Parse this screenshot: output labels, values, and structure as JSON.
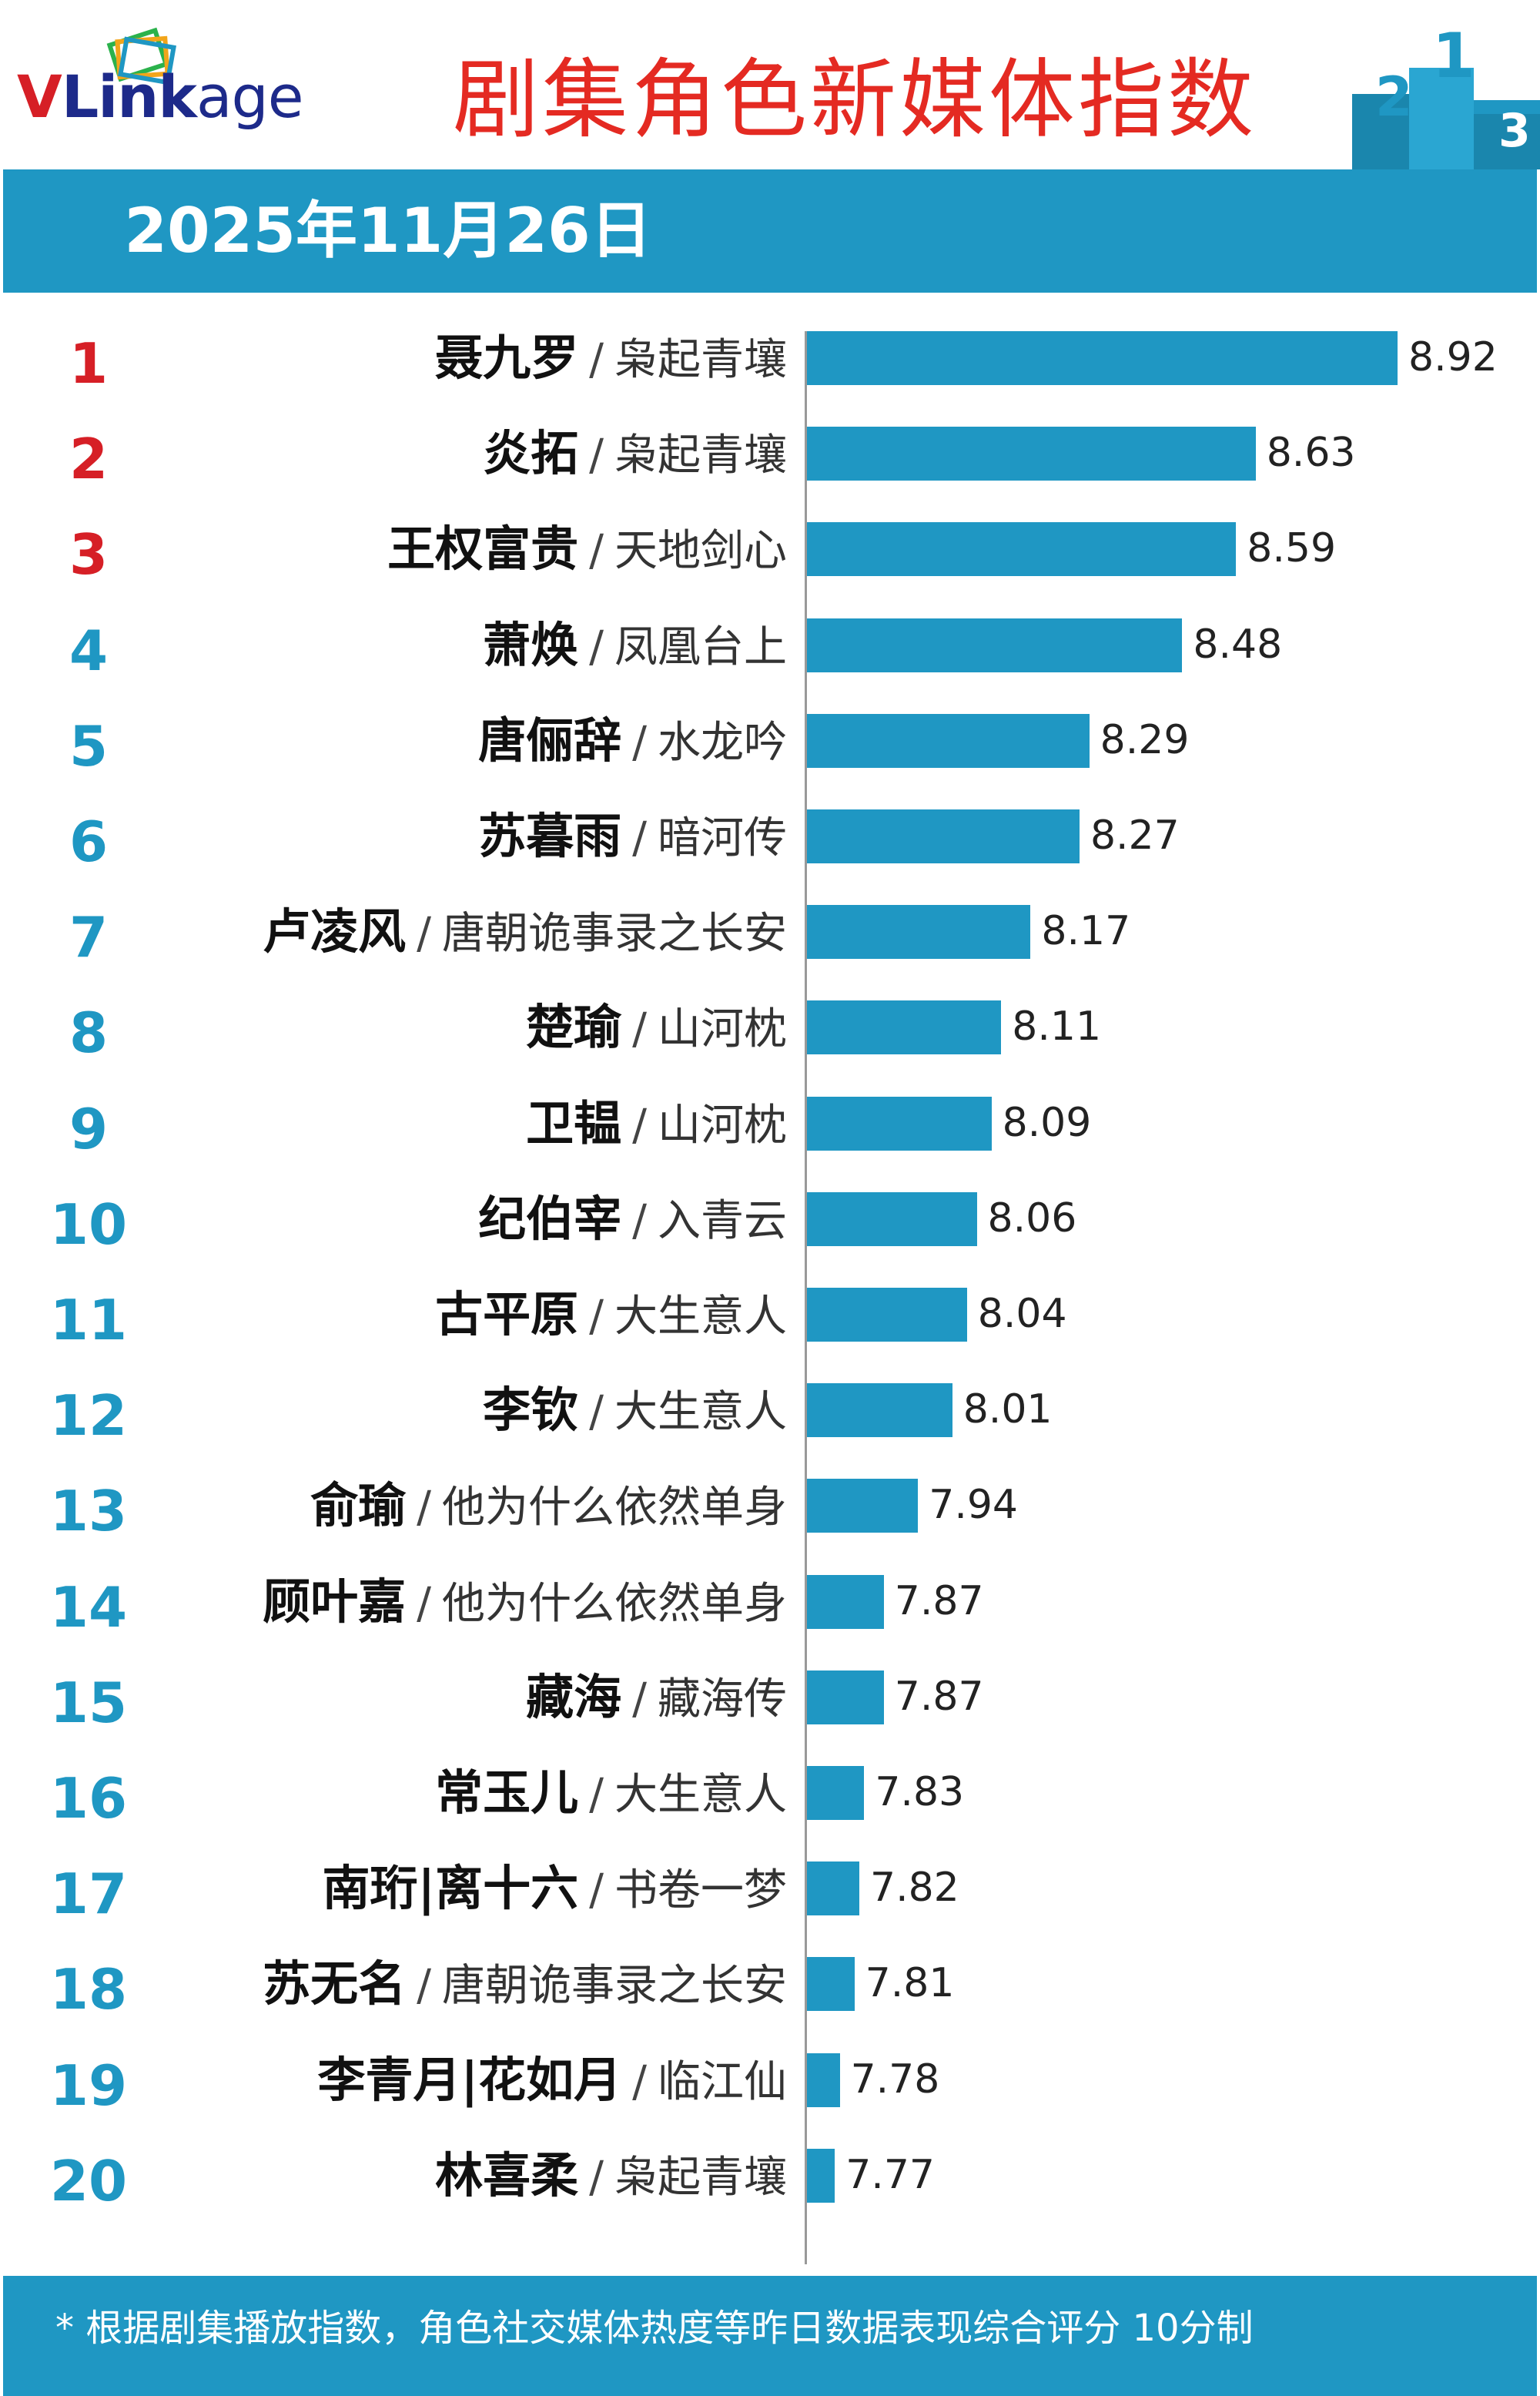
{
  "brand": {
    "logo_v": "V",
    "logo_link": "Link",
    "logo_age": "age"
  },
  "header": {
    "title": "剧集角色新媒体指数",
    "date": "2025年11月26日"
  },
  "colors": {
    "bar": "#1f97c3",
    "rank_top": "#d61f26",
    "rank_other": "#1f97c3",
    "title": "#e42a22"
  },
  "chart_data": {
    "type": "bar",
    "orientation": "horizontal",
    "title": "剧集角色新媒体指数",
    "subtitle": "2025年11月26日",
    "xlim": [
      7.7,
      9.0
    ],
    "items": [
      {
        "rank": "1",
        "character": "聂九罗",
        "drama": "枭起青壤",
        "value": 8.92,
        "value_label": "8.92"
      },
      {
        "rank": "2",
        "character": "炎拓",
        "drama": "枭起青壤",
        "value": 8.63,
        "value_label": "8.63"
      },
      {
        "rank": "3",
        "character": "王权富贵",
        "drama": "天地剑心",
        "value": 8.59,
        "value_label": "8.59"
      },
      {
        "rank": "4",
        "character": "萧焕",
        "drama": "凤凰台上",
        "value": 8.48,
        "value_label": "8.48"
      },
      {
        "rank": "5",
        "character": "唐俪辞",
        "drama": "水龙吟",
        "value": 8.29,
        "value_label": "8.29"
      },
      {
        "rank": "6",
        "character": "苏暮雨",
        "drama": "暗河传",
        "value": 8.27,
        "value_label": "8.27"
      },
      {
        "rank": "7",
        "character": "卢凌风",
        "drama": "唐朝诡事录之长安",
        "value": 8.17,
        "value_label": "8.17"
      },
      {
        "rank": "8",
        "character": "楚瑜",
        "drama": "山河枕",
        "value": 8.11,
        "value_label": "8.11"
      },
      {
        "rank": "9",
        "character": "卫韫",
        "drama": "山河枕",
        "value": 8.09,
        "value_label": "8.09"
      },
      {
        "rank": "10",
        "character": "纪伯宰",
        "drama": "入青云",
        "value": 8.06,
        "value_label": "8.06"
      },
      {
        "rank": "11",
        "character": "古平原",
        "drama": "大生意人",
        "value": 8.04,
        "value_label": "8.04"
      },
      {
        "rank": "12",
        "character": "李钦",
        "drama": "大生意人",
        "value": 8.01,
        "value_label": "8.01"
      },
      {
        "rank": "13",
        "character": "俞瑜",
        "drama": "他为什么依然单身",
        "value": 7.94,
        "value_label": "7.94"
      },
      {
        "rank": "14",
        "character": "顾叶嘉",
        "drama": "他为什么依然单身",
        "value": 7.87,
        "value_label": "7.87"
      },
      {
        "rank": "15",
        "character": "藏海",
        "drama": "藏海传",
        "value": 7.87,
        "value_label": "7.87"
      },
      {
        "rank": "16",
        "character": "常玉儿",
        "drama": "大生意人",
        "value": 7.83,
        "value_label": "7.83"
      },
      {
        "rank": "17",
        "character": "南珩|离十六",
        "drama": "书卷一梦",
        "value": 7.82,
        "value_label": "7.82"
      },
      {
        "rank": "18",
        "character": "苏无名",
        "drama": "唐朝诡事录之长安",
        "value": 7.81,
        "value_label": "7.81"
      },
      {
        "rank": "19",
        "character": "李青月|花如月",
        "drama": "临江仙",
        "value": 7.78,
        "value_label": "7.78"
      },
      {
        "rank": "20",
        "character": "林喜柔",
        "drama": "枭起青壤",
        "value": 7.77,
        "value_label": "7.77"
      }
    ]
  },
  "footer": {
    "note": "* 根据剧集播放指数，角色社交媒体热度等昨日数据表现综合评分 10分制"
  }
}
